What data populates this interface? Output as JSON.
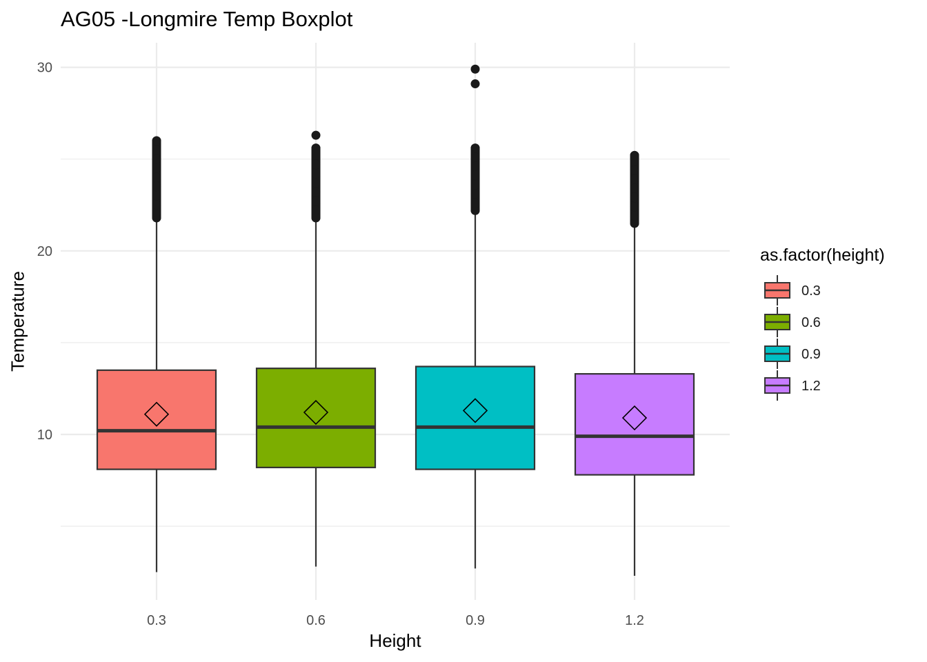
{
  "chart_data": {
    "type": "boxplot",
    "title": "AG05 -Longmire Temp Boxplot",
    "xlabel": "Height",
    "ylabel": "Temperature",
    "ylim": [
      2,
      31
    ],
    "y_ticks": [
      "10",
      "20",
      "30"
    ],
    "categories": [
      "0.3",
      "0.6",
      "0.9",
      "1.2"
    ],
    "grid": true,
    "legend": {
      "title": "as.factor(height)",
      "position": "right"
    },
    "series": [
      {
        "category": "0.3",
        "color": "#F8766D",
        "whisker_low": 2.5,
        "q1": 8.1,
        "median": 10.2,
        "q3": 13.5,
        "whisker_high": 21.7,
        "mean": 11.1,
        "outliers": [
          21.8,
          22.1,
          22.5,
          23.0,
          23.5,
          24.0,
          24.5,
          25.0,
          25.5,
          26.0
        ]
      },
      {
        "category": "0.6",
        "color": "#7CAE00",
        "whisker_low": 2.8,
        "q1": 8.2,
        "median": 10.4,
        "q3": 13.6,
        "whisker_high": 21.7,
        "mean": 11.2,
        "outliers": [
          21.8,
          22.2,
          22.7,
          23.2,
          23.7,
          24.2,
          24.7,
          25.2,
          25.6,
          26.3
        ]
      },
      {
        "category": "0.9",
        "color": "#00BFC4",
        "whisker_low": 2.7,
        "q1": 8.1,
        "median": 10.4,
        "q3": 13.7,
        "whisker_high": 22.1,
        "mean": 11.3,
        "outliers": [
          22.2,
          22.6,
          23.1,
          23.6,
          24.1,
          24.6,
          25.1,
          25.6,
          29.1,
          29.9
        ]
      },
      {
        "category": "1.2",
        "color": "#C77CFF",
        "whisker_low": 2.3,
        "q1": 7.8,
        "median": 9.9,
        "q3": 13.3,
        "whisker_high": 21.4,
        "mean": 10.9,
        "outliers": [
          21.5,
          21.9,
          22.4,
          22.9,
          23.4,
          23.9,
          24.4,
          24.9,
          25.2
        ]
      }
    ]
  }
}
